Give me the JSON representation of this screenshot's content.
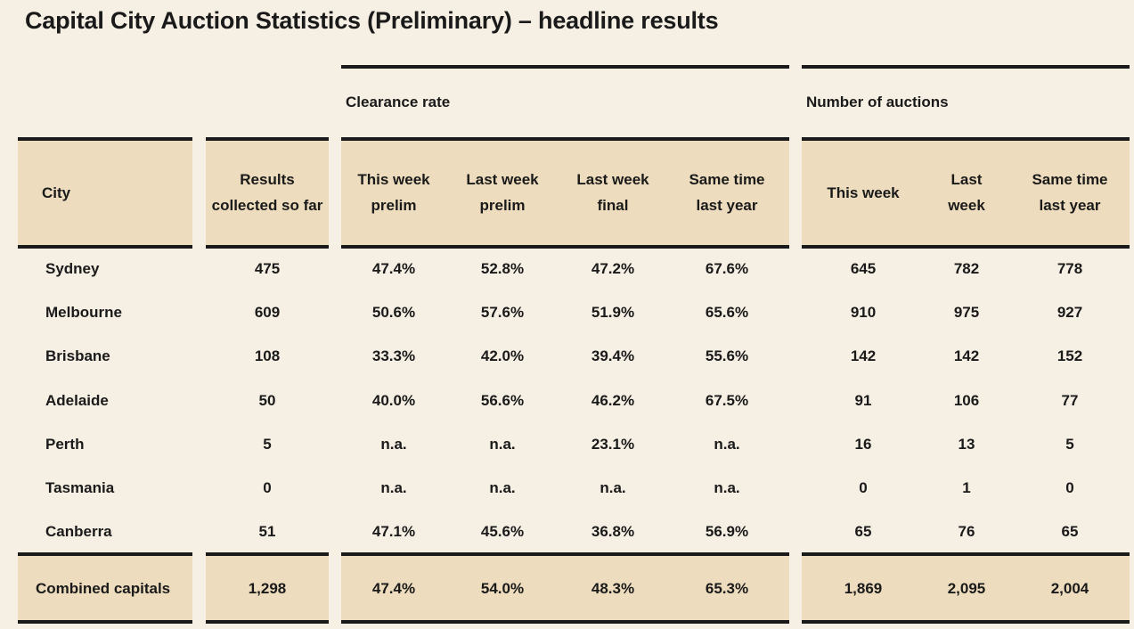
{
  "title": "Capital City Auction Statistics (Preliminary) – headline results",
  "groups": {
    "clearance_rate": "Clearance rate",
    "number_of_auctions": "Number of auctions"
  },
  "headers": [
    "City",
    "Results collected so far",
    "This week prelim",
    "Last week prelim",
    "Last week final",
    "Same time last year",
    "This week",
    "Last week",
    "Same time last year"
  ],
  "rows": [
    [
      "Sydney",
      "475",
      "47.4%",
      "52.8%",
      "47.2%",
      "67.6%",
      "645",
      "782",
      "778"
    ],
    [
      "Melbourne",
      "609",
      "50.6%",
      "57.6%",
      "51.9%",
      "65.6%",
      "910",
      "975",
      "927"
    ],
    [
      "Brisbane",
      "108",
      "33.3%",
      "42.0%",
      "39.4%",
      "55.6%",
      "142",
      "142",
      "152"
    ],
    [
      "Adelaide",
      "50",
      "40.0%",
      "56.6%",
      "46.2%",
      "67.5%",
      "91",
      "106",
      "77"
    ],
    [
      "Perth",
      "5",
      "n.a.",
      "n.a.",
      "23.1%",
      "n.a.",
      "16",
      "13",
      "5"
    ],
    [
      "Tasmania",
      "0",
      "n.a.",
      "n.a.",
      "n.a.",
      "n.a.",
      "0",
      "1",
      "0"
    ],
    [
      "Canberra",
      "51",
      "47.1%",
      "45.6%",
      "36.8%",
      "56.9%",
      "65",
      "76",
      "65"
    ]
  ],
  "total": [
    "Combined capitals",
    "1,298",
    "47.4%",
    "54.0%",
    "48.3%",
    "65.3%",
    "1,869",
    "2,095",
    "2,004"
  ],
  "colors": {
    "background": "#f6efe3",
    "header_band": "#eddcbd",
    "rule": "#1a1a1a"
  }
}
